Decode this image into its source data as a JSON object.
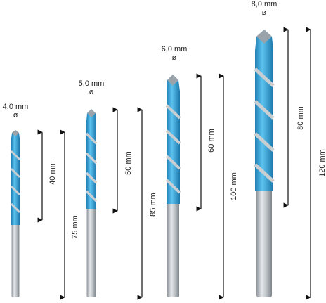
{
  "drills": [
    {
      "diameter": "4,0 mm",
      "symbol": "ø",
      "working_length": "40 mm",
      "total_length": "75 mm"
    },
    {
      "diameter": "5,0 mm",
      "symbol": "ø",
      "working_length": "50 mm",
      "total_length": "85 mm"
    },
    {
      "diameter": "6,0 mm",
      "symbol": "ø",
      "working_length": "60 mm",
      "total_length": "100 mm"
    },
    {
      "diameter": "8,0 mm",
      "symbol": "ø",
      "working_length": "80 mm",
      "total_length": "120 mm"
    }
  ],
  "colors": {
    "tip": "#3aa6d9",
    "shank": "#c3c8cc",
    "dimension": "#111111"
  }
}
